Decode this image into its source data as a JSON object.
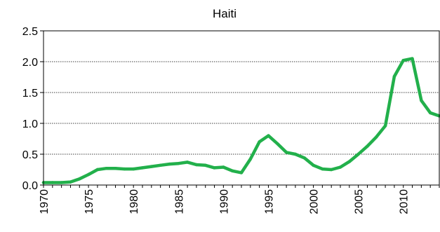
{
  "chart_data": {
    "type": "line",
    "title": "Haiti",
    "xlabel": "",
    "ylabel": "",
    "xlim": [
      1970,
      2014
    ],
    "ylim": [
      0,
      2.5
    ],
    "y_ticks": [
      "0.0",
      "0.5",
      "1.0",
      "1.5",
      "2.0",
      "2.5"
    ],
    "x_ticks": [
      "1970",
      "1975",
      "1980",
      "1985",
      "1990",
      "1995",
      "2000",
      "2005",
      "2010"
    ],
    "grid": "horizontal dotted",
    "colors": {
      "line": "#22b04b"
    },
    "series": [
      {
        "x": [
          1970,
          1971,
          1972,
          1973,
          1974,
          1975,
          1976,
          1977,
          1978,
          1979,
          1980,
          1981,
          1982,
          1983,
          1984,
          1985,
          1986,
          1987,
          1988,
          1989,
          1990,
          1991,
          1992,
          1993,
          1994,
          1995,
          1996,
          1997,
          1998,
          1999,
          2000,
          2001,
          2002,
          2003,
          2004,
          2005,
          2006,
          2007,
          2008,
          2009,
          2010,
          2011,
          2012,
          2013,
          2014
        ],
        "values": [
          0.04,
          0.04,
          0.04,
          0.05,
          0.1,
          0.17,
          0.25,
          0.27,
          0.27,
          0.26,
          0.26,
          0.28,
          0.3,
          0.32,
          0.34,
          0.35,
          0.37,
          0.33,
          0.32,
          0.28,
          0.29,
          0.23,
          0.2,
          0.42,
          0.7,
          0.8,
          0.67,
          0.53,
          0.5,
          0.44,
          0.32,
          0.26,
          0.25,
          0.29,
          0.38,
          0.5,
          0.63,
          0.78,
          0.96,
          1.76,
          2.02,
          2.05,
          1.37,
          1.17,
          1.12
        ]
      }
    ]
  }
}
